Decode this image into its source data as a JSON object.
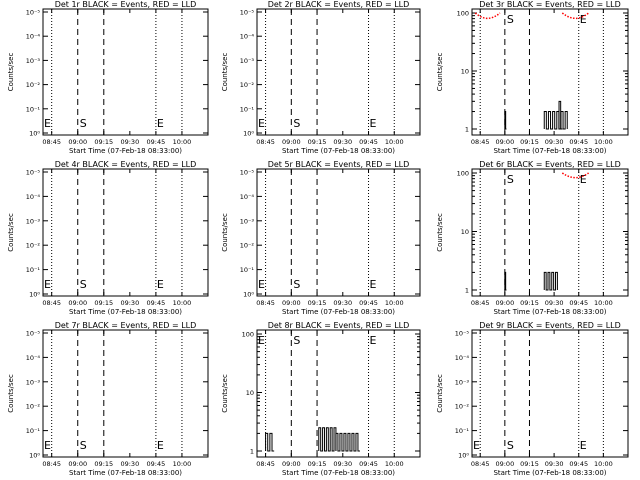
{
  "chart_data": [
    {
      "title": "Det 1r BLACK = Events, RED = LLD",
      "type": "line",
      "scale": "log",
      "ylabel": "Counts/sec",
      "xlabel": "Start Time (07-Feb-18 08:33:00)",
      "y_ticks": [
        "10⁰",
        "10⁻¹",
        "10⁻²",
        "10⁻³",
        "10⁻⁴",
        "10⁻⁵"
      ],
      "x_ticks": [
        "08:45",
        "09:00",
        "09:15",
        "09:30",
        "09:45",
        "10:00"
      ],
      "x_range_minutes": [
        520,
        615
      ],
      "markers": {
        "start": "S",
        "end": "E"
      },
      "events": [],
      "lld": []
    },
    {
      "title": "Det 2r BLACK = Events, RED = LLD",
      "type": "line",
      "scale": "log",
      "ylabel": "Counts/sec",
      "xlabel": "Start Time (07-Feb-18 08:33:00)",
      "y_ticks": [
        "10⁰",
        "10⁻¹",
        "10⁻²",
        "10⁻³",
        "10⁻⁴",
        "10⁻⁵"
      ],
      "x_ticks": [
        "08:45",
        "09:00",
        "09:15",
        "09:30",
        "09:45",
        "10:00"
      ],
      "x_range_minutes": [
        520,
        615
      ],
      "markers": {
        "start": "S",
        "end": "E"
      },
      "events": [],
      "lld": []
    },
    {
      "title": "Det 3r BLACK = Events, RED = LLD",
      "type": "line",
      "scale": "log",
      "ylabel": "Counts/sec",
      "xlabel": "Start Time (07-Feb-18 08:33:00)",
      "y_ticks": [
        "1",
        "10",
        "100"
      ],
      "x_ticks": [
        "08:45",
        "09:00",
        "09:15",
        "09:30",
        "09:45",
        "10:00"
      ],
      "x_range_minutes": [
        520,
        615
      ],
      "markers": {
        "start": "S",
        "end": "E"
      },
      "events": [
        {
          "x0": 540,
          "x1": 541,
          "level": 2
        },
        {
          "x0": 564,
          "x1": 578,
          "level": 2
        },
        {
          "x0": 573,
          "x1": 575,
          "level": 3
        }
      ],
      "lld": [
        {
          "x0": 522,
          "x1": 537,
          "level": 90,
          "peak": 100
        },
        {
          "x0": 575,
          "x1": 591,
          "level": 90,
          "peak": 100
        }
      ]
    },
    {
      "title": "Det 4r BLACK = Events, RED = LLD",
      "type": "line",
      "scale": "log",
      "ylabel": "Counts/sec",
      "xlabel": "Start Time (07-Feb-18 08:33:00)",
      "y_ticks": [
        "10⁰",
        "10⁻¹",
        "10⁻²",
        "10⁻³",
        "10⁻⁴",
        "10⁻⁵"
      ],
      "x_ticks": [
        "08:45",
        "09:00",
        "09:15",
        "09:30",
        "09:45",
        "10:00"
      ],
      "x_range_minutes": [
        520,
        615
      ],
      "markers": {
        "start": "S",
        "end": "E"
      },
      "events": [],
      "lld": []
    },
    {
      "title": "Det 5r BLACK = Events, RED = LLD",
      "type": "line",
      "scale": "log",
      "ylabel": "Counts/sec",
      "xlabel": "Start Time (07-Feb-18 08:33:00)",
      "y_ticks": [
        "10⁰",
        "10⁻¹",
        "10⁻²",
        "10⁻³",
        "10⁻⁴",
        "10⁻⁵"
      ],
      "x_ticks": [
        "08:45",
        "09:00",
        "09:15",
        "09:30",
        "09:45",
        "10:00"
      ],
      "x_range_minutes": [
        520,
        615
      ],
      "markers": {
        "start": "S",
        "end": "E"
      },
      "events": [],
      "lld": []
    },
    {
      "title": "Det 6r BLACK = Events, RED = LLD",
      "type": "line",
      "scale": "log",
      "ylabel": "Counts/sec",
      "xlabel": "Start Time (07-Feb-18 08:33:00)",
      "y_ticks": [
        "1",
        "10",
        "100"
      ],
      "x_ticks": [
        "08:45",
        "09:00",
        "09:15",
        "09:30",
        "09:45",
        "10:00"
      ],
      "x_range_minutes": [
        520,
        615
      ],
      "markers": {
        "start": "S",
        "end": "E"
      },
      "events": [
        {
          "x0": 540,
          "x1": 541,
          "level": 2
        },
        {
          "x0": 564,
          "x1": 572,
          "level": 2
        }
      ],
      "lld": [
        {
          "x0": 575,
          "x1": 591,
          "level": 95,
          "peak": 100
        }
      ]
    },
    {
      "title": "Det 7r BLACK = Events, RED = LLD",
      "type": "line",
      "scale": "log",
      "ylabel": "Counts/sec",
      "xlabel": "Start Time (07-Feb-18 08:33:00)",
      "y_ticks": [
        "10⁰",
        "10⁻¹",
        "10⁻²",
        "10⁻³",
        "10⁻⁴",
        "10⁻⁵"
      ],
      "x_ticks": [
        "08:45",
        "09:00",
        "09:15",
        "09:30",
        "09:45",
        "10:00"
      ],
      "x_range_minutes": [
        520,
        615
      ],
      "markers": {
        "start": "S",
        "end": "E"
      },
      "events": [],
      "lld": []
    },
    {
      "title": "Det 8r BLACK = Events, RED = LLD",
      "type": "line",
      "scale": "log",
      "ylabel": "Counts/sec",
      "xlabel": "Start Time (07-Feb-18 08:33:00)",
      "y_ticks": [
        "1",
        "10",
        "100"
      ],
      "x_ticks": [
        "08:45",
        "09:00",
        "09:15",
        "09:30",
        "09:45",
        "10:00"
      ],
      "x_range_minutes": [
        520,
        615
      ],
      "markers": {
        "start": "S",
        "end": "E"
      },
      "events": [
        {
          "x0": 525,
          "x1": 530,
          "level": 2
        },
        {
          "x0": 556,
          "x1": 566,
          "level": 2.5
        },
        {
          "x0": 566,
          "x1": 580,
          "level": 2
        }
      ],
      "lld": []
    },
    {
      "title": "Det 9r BLACK = Events, RED = LLD",
      "type": "line",
      "scale": "log",
      "ylabel": "Counts/sec",
      "xlabel": "Start Time (07-Feb-18 08:33:00)",
      "y_ticks": [
        "10⁰",
        "10⁻¹",
        "10⁻²",
        "10⁻³",
        "10⁻⁴",
        "10⁻⁵"
      ],
      "x_ticks": [
        "08:45",
        "09:00",
        "09:15",
        "09:30",
        "09:45",
        "10:00"
      ],
      "x_range_minutes": [
        520,
        615
      ],
      "markers": {
        "start": "S",
        "end": "E"
      },
      "events": [],
      "lld": []
    }
  ],
  "colors": {
    "events": "#000000",
    "lld": "#ff0000",
    "background": "#ffffff"
  }
}
